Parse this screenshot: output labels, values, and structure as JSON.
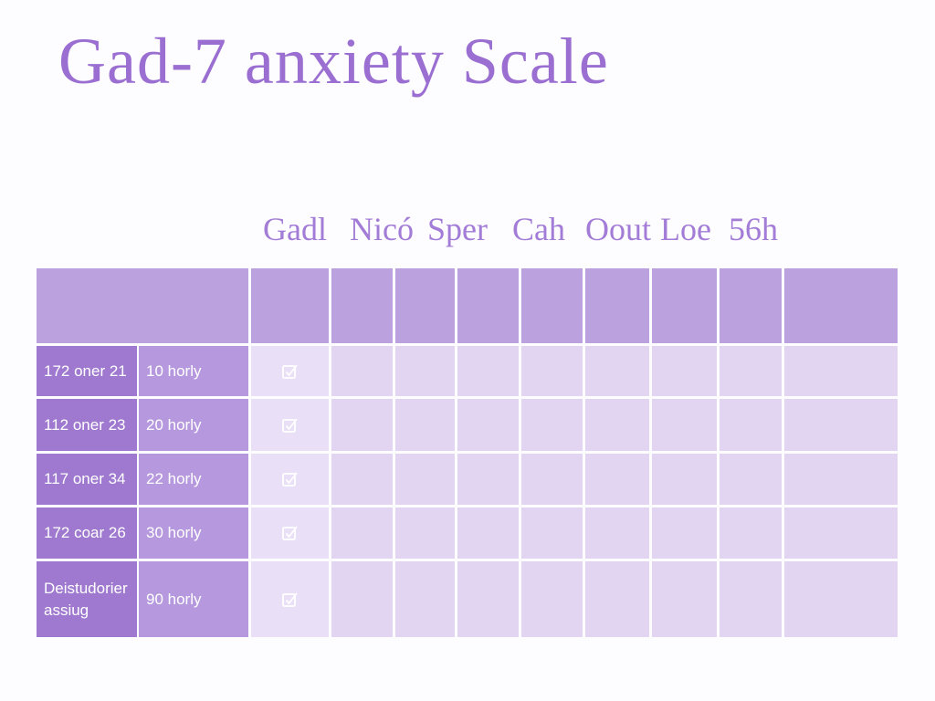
{
  "header": {
    "title": "Gad-7 anxiety Scale"
  },
  "table": {
    "columns": [
      "Gadl",
      "Nicó",
      "Sper",
      "Cah",
      "Oout",
      "Loe",
      "56h"
    ],
    "rows": [
      [
        "172 oner 21",
        "10 horly"
      ],
      [
        "112 oner 23",
        "20 horly"
      ],
      [
        "117 oner 34",
        "22 horly"
      ],
      [
        "172 coar 26",
        "30 horly"
      ],
      [
        "Deistudorier assiug",
        "90 horly"
      ]
    ]
  }
}
